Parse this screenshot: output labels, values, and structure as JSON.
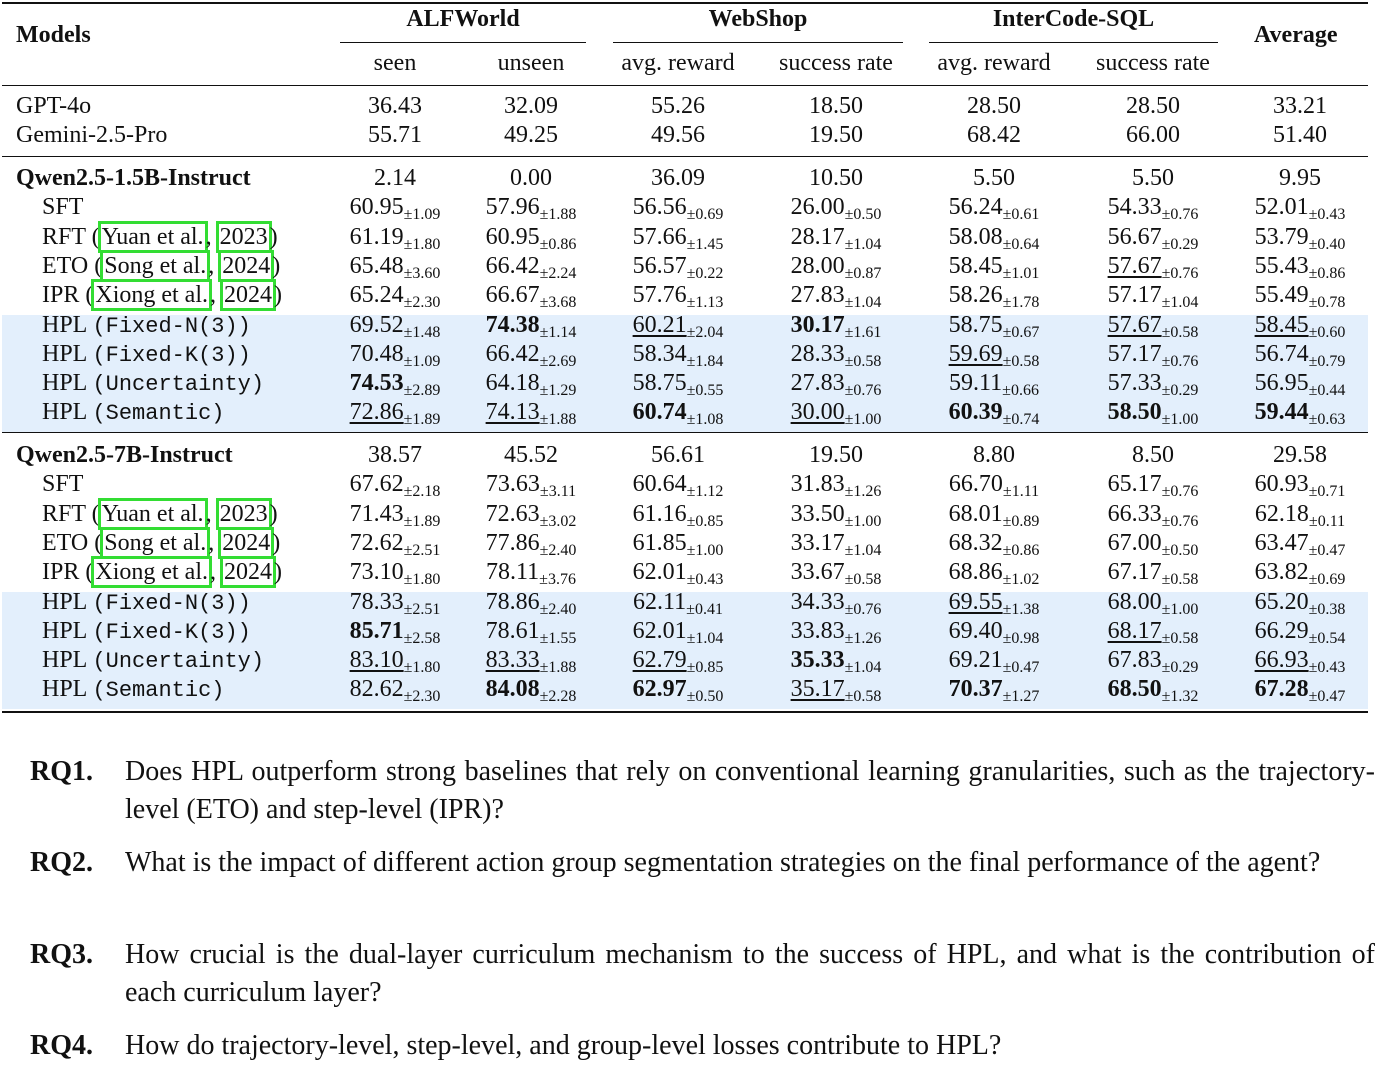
{
  "table": {
    "models_header": "Models",
    "average_header": "Average",
    "groups": [
      {
        "name": "ALFWorld",
        "subs": [
          "seen",
          "unseen"
        ]
      },
      {
        "name": "WebShop",
        "subs": [
          "avg. reward",
          "success rate"
        ]
      },
      {
        "name": "InterCode-SQL",
        "subs": [
          "avg. reward",
          "success rate"
        ]
      }
    ],
    "sections": [
      {
        "rows": [
          {
            "name": "GPT-4o",
            "cells": [
              {
                "v": "36.43"
              },
              {
                "v": "32.09"
              },
              {
                "v": "55.26"
              },
              {
                "v": "18.50"
              },
              {
                "v": "28.50"
              },
              {
                "v": "28.50"
              },
              {
                "v": "33.21"
              }
            ]
          },
          {
            "name": "Gemini-2.5-Pro",
            "cells": [
              {
                "v": "55.71"
              },
              {
                "v": "49.25"
              },
              {
                "v": "49.56"
              },
              {
                "v": "19.50"
              },
              {
                "v": "68.42"
              },
              {
                "v": "66.00"
              },
              {
                "v": "51.40"
              }
            ]
          }
        ]
      },
      {
        "base": {
          "name": "Qwen2.5-1.5B-Instruct",
          "cells": [
            {
              "v": "2.14"
            },
            {
              "v": "0.00"
            },
            {
              "v": "36.09"
            },
            {
              "v": "10.50"
            },
            {
              "v": "5.50"
            },
            {
              "v": "5.50"
            },
            {
              "v": "9.95"
            }
          ]
        },
        "rows": [
          {
            "name": "SFT",
            "cells": [
              {
                "v": "60.95",
                "s": "±1.09"
              },
              {
                "v": "57.96",
                "s": "±1.88"
              },
              {
                "v": "56.56",
                "s": "±0.69"
              },
              {
                "v": "26.00",
                "s": "±0.50"
              },
              {
                "v": "56.24",
                "s": "±0.61"
              },
              {
                "v": "54.33",
                "s": "±0.76"
              },
              {
                "v": "52.01",
                "s": "±0.43"
              }
            ]
          },
          {
            "name": "RFT",
            "cite_author": "Yuan et al.",
            "cite_year": "2023",
            "cells": [
              {
                "v": "61.19",
                "s": "±1.80"
              },
              {
                "v": "60.95",
                "s": "±0.86"
              },
              {
                "v": "57.66",
                "s": "±1.45"
              },
              {
                "v": "28.17",
                "s": "±1.04"
              },
              {
                "v": "58.08",
                "s": "±0.64"
              },
              {
                "v": "56.67",
                "s": "±0.29"
              },
              {
                "v": "53.79",
                "s": "±0.40"
              }
            ]
          },
          {
            "name": "ETO",
            "cite_author": "Song et al.",
            "cite_year": "2024",
            "cells": [
              {
                "v": "65.48",
                "s": "±3.60"
              },
              {
                "v": "66.42",
                "s": "±2.24"
              },
              {
                "v": "56.57",
                "s": "±0.22"
              },
              {
                "v": "28.00",
                "s": "±0.87"
              },
              {
                "v": "58.45",
                "s": "±1.01"
              },
              {
                "v": "57.67",
                "s": "±0.76",
                "e": "u"
              },
              {
                "v": "55.43",
                "s": "±0.86"
              }
            ]
          },
          {
            "name": "IPR",
            "cite_author": "Xiong et al.",
            "cite_year": "2024",
            "cells": [
              {
                "v": "65.24",
                "s": "±2.30"
              },
              {
                "v": "66.67",
                "s": "±3.68"
              },
              {
                "v": "57.76",
                "s": "±1.13"
              },
              {
                "v": "27.83",
                "s": "±1.04"
              },
              {
                "v": "58.26",
                "s": "±1.78"
              },
              {
                "v": "57.17",
                "s": "±1.04"
              },
              {
                "v": "55.49",
                "s": "±0.78"
              }
            ]
          },
          {
            "name": "HPL",
            "variant": "(Fixed-N(3))",
            "hl": true,
            "cells": [
              {
                "v": "69.52",
                "s": "±1.48"
              },
              {
                "v": "74.38",
                "s": "±1.14",
                "e": "b"
              },
              {
                "v": "60.21",
                "s": "±2.04",
                "e": "u"
              },
              {
                "v": "30.17",
                "s": "±1.61",
                "e": "b"
              },
              {
                "v": "58.75",
                "s": "±0.67"
              },
              {
                "v": "57.67",
                "s": "±0.58",
                "e": "u"
              },
              {
                "v": "58.45",
                "s": "±0.60",
                "e": "u"
              }
            ]
          },
          {
            "name": "HPL",
            "variant": "(Fixed-K(3))",
            "hl": true,
            "cells": [
              {
                "v": "70.48",
                "s": "±1.09"
              },
              {
                "v": "66.42",
                "s": "±2.69"
              },
              {
                "v": "58.34",
                "s": "±1.84"
              },
              {
                "v": "28.33",
                "s": "±0.58"
              },
              {
                "v": "59.69",
                "s": "±0.58",
                "e": "u"
              },
              {
                "v": "57.17",
                "s": "±0.76"
              },
              {
                "v": "56.74",
                "s": "±0.79"
              }
            ]
          },
          {
            "name": "HPL",
            "variant": "(Uncertainty)",
            "hl": true,
            "cells": [
              {
                "v": "74.53",
                "s": "±2.89",
                "e": "b"
              },
              {
                "v": "64.18",
                "s": "±1.29"
              },
              {
                "v": "58.75",
                "s": "±0.55"
              },
              {
                "v": "27.83",
                "s": "±0.76"
              },
              {
                "v": "59.11",
                "s": "±0.66"
              },
              {
                "v": "57.33",
                "s": "±0.29"
              },
              {
                "v": "56.95",
                "s": "±0.44"
              }
            ]
          },
          {
            "name": "HPL",
            "variant": "(Semantic)",
            "hl": true,
            "cells": [
              {
                "v": "72.86",
                "s": "±1.89",
                "e": "u"
              },
              {
                "v": "74.13",
                "s": "±1.88",
                "e": "u"
              },
              {
                "v": "60.74",
                "s": "±1.08",
                "e": "b"
              },
              {
                "v": "30.00",
                "s": "±1.00",
                "e": "u"
              },
              {
                "v": "60.39",
                "s": "±0.74",
                "e": "b"
              },
              {
                "v": "58.50",
                "s": "±1.00",
                "e": "b"
              },
              {
                "v": "59.44",
                "s": "±0.63",
                "e": "b"
              }
            ]
          }
        ]
      },
      {
        "base": {
          "name": "Qwen2.5-7B-Instruct",
          "cells": [
            {
              "v": "38.57"
            },
            {
              "v": "45.52"
            },
            {
              "v": "56.61"
            },
            {
              "v": "19.50"
            },
            {
              "v": "8.80"
            },
            {
              "v": "8.50"
            },
            {
              "v": "29.58"
            }
          ]
        },
        "rows": [
          {
            "name": "SFT",
            "cells": [
              {
                "v": "67.62",
                "s": "±2.18"
              },
              {
                "v": "73.63",
                "s": "±3.11"
              },
              {
                "v": "60.64",
                "s": "±1.12"
              },
              {
                "v": "31.83",
                "s": "±1.26"
              },
              {
                "v": "66.70",
                "s": "±1.11"
              },
              {
                "v": "65.17",
                "s": "±0.76"
              },
              {
                "v": "60.93",
                "s": "±0.71"
              }
            ]
          },
          {
            "name": "RFT",
            "cite_author": "Yuan et al.",
            "cite_year": "2023",
            "cells": [
              {
                "v": "71.43",
                "s": "±1.89"
              },
              {
                "v": "72.63",
                "s": "±3.02"
              },
              {
                "v": "61.16",
                "s": "±0.85"
              },
              {
                "v": "33.50",
                "s": "±1.00"
              },
              {
                "v": "68.01",
                "s": "±0.89"
              },
              {
                "v": "66.33",
                "s": "±0.76"
              },
              {
                "v": "62.18",
                "s": "±0.11"
              }
            ]
          },
          {
            "name": "ETO",
            "cite_author": "Song et al.",
            "cite_year": "2024",
            "cells": [
              {
                "v": "72.62",
                "s": "±2.51"
              },
              {
                "v": "77.86",
                "s": "±2.40"
              },
              {
                "v": "61.85",
                "s": "±1.00"
              },
              {
                "v": "33.17",
                "s": "±1.04"
              },
              {
                "v": "68.32",
                "s": "±0.86"
              },
              {
                "v": "67.00",
                "s": "±0.50"
              },
              {
                "v": "63.47",
                "s": "±0.47"
              }
            ]
          },
          {
            "name": "IPR",
            "cite_author": "Xiong et al.",
            "cite_year": "2024",
            "cells": [
              {
                "v": "73.10",
                "s": "±1.80"
              },
              {
                "v": "78.11",
                "s": "±3.76"
              },
              {
                "v": "62.01",
                "s": "±0.43"
              },
              {
                "v": "33.67",
                "s": "±0.58"
              },
              {
                "v": "68.86",
                "s": "±1.02"
              },
              {
                "v": "67.17",
                "s": "±0.58"
              },
              {
                "v": "63.82",
                "s": "±0.69"
              }
            ]
          },
          {
            "name": "HPL",
            "variant": "(Fixed-N(3))",
            "hl": true,
            "cells": [
              {
                "v": "78.33",
                "s": "±2.51"
              },
              {
                "v": "78.86",
                "s": "±2.40"
              },
              {
                "v": "62.11",
                "s": "±0.41"
              },
              {
                "v": "34.33",
                "s": "±0.76"
              },
              {
                "v": "69.55",
                "s": "±1.38",
                "e": "u"
              },
              {
                "v": "68.00",
                "s": "±1.00"
              },
              {
                "v": "65.20",
                "s": "±0.38"
              }
            ]
          },
          {
            "name": "HPL",
            "variant": "(Fixed-K(3))",
            "hl": true,
            "cells": [
              {
                "v": "85.71",
                "s": "±2.58",
                "e": "b"
              },
              {
                "v": "78.61",
                "s": "±1.55"
              },
              {
                "v": "62.01",
                "s": "±1.04"
              },
              {
                "v": "33.83",
                "s": "±1.26"
              },
              {
                "v": "69.40",
                "s": "±0.98"
              },
              {
                "v": "68.17",
                "s": "±0.58",
                "e": "u"
              },
              {
                "v": "66.29",
                "s": "±0.54"
              }
            ]
          },
          {
            "name": "HPL",
            "variant": "(Uncertainty)",
            "hl": true,
            "cells": [
              {
                "v": "83.10",
                "s": "±1.80",
                "e": "u"
              },
              {
                "v": "83.33",
                "s": "±1.88",
                "e": "u"
              },
              {
                "v": "62.79",
                "s": "±0.85",
                "e": "u"
              },
              {
                "v": "35.33",
                "s": "±1.04",
                "e": "b"
              },
              {
                "v": "69.21",
                "s": "±0.47"
              },
              {
                "v": "67.83",
                "s": "±0.29"
              },
              {
                "v": "66.93",
                "s": "±0.43",
                "e": "u"
              }
            ]
          },
          {
            "name": "HPL",
            "variant": "(Semantic)",
            "hl": true,
            "cells": [
              {
                "v": "82.62",
                "s": "±2.30"
              },
              {
                "v": "84.08",
                "s": "±2.28",
                "e": "b"
              },
              {
                "v": "62.97",
                "s": "±0.50",
                "e": "b"
              },
              {
                "v": "35.17",
                "s": "±0.58",
                "e": "u"
              },
              {
                "v": "70.37",
                "s": "±1.27",
                "e": "b"
              },
              {
                "v": "68.50",
                "s": "±1.32",
                "e": "b"
              },
              {
                "v": "67.28",
                "s": "±0.47",
                "e": "b"
              }
            ]
          }
        ]
      }
    ]
  },
  "research_questions": [
    {
      "label": "RQ1.",
      "text": "Does HPL outperform strong baselines that rely on conventional learning granularities, such as the trajectory-level (ETO) and step-level (IPR)?"
    },
    {
      "label": "RQ2.",
      "text": "What is the impact of different action group segmentation strategies on the final performance of the agent?"
    },
    {
      "label": "RQ3.",
      "text": "How crucial is the dual-layer curriculum mechanism to the success of HPL, and what is the contribution of each curriculum layer?"
    },
    {
      "label": "RQ4.",
      "text": "How do trajectory-level, step-level, and group-level losses contribute to HPL?"
    }
  ],
  "colors": {
    "highlight_band": "#e3effc",
    "citation_box": "#33dd33"
  }
}
